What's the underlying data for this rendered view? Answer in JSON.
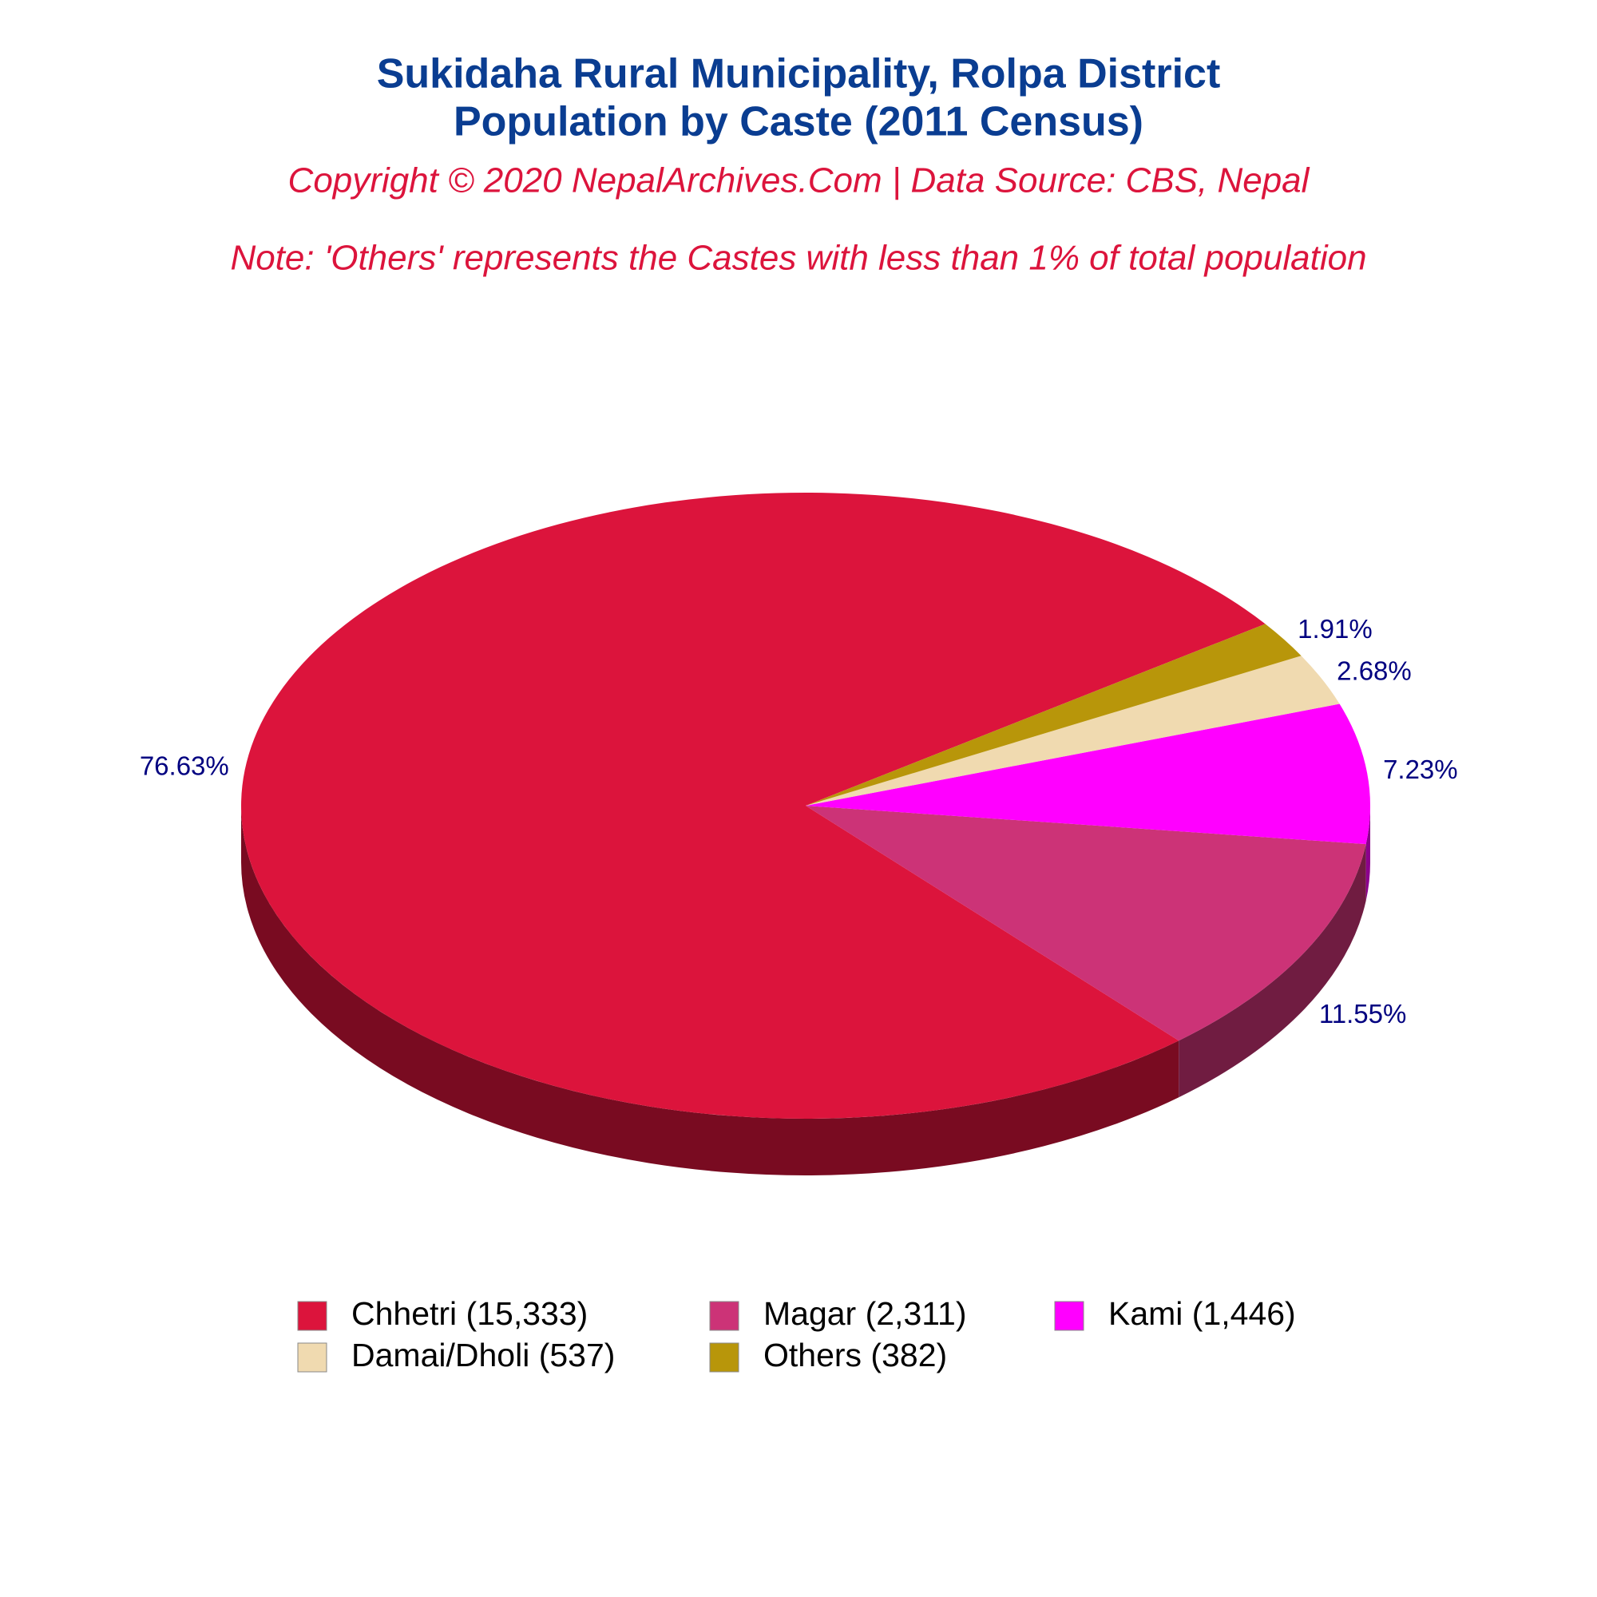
{
  "chart_data": {
    "type": "pie",
    "title": [
      "Sukidaha Rural Municipality, Rolpa District",
      "Population by Caste (2011 Census)"
    ],
    "subtitle": "Copyright © 2020 NepalArchives.Com | Data Source: CBS, Nepal",
    "note": "Note: 'Others' represents the Castes with less than 1% of total population",
    "categories": [
      "Chhetri (15,333)",
      "Magar (2,311)",
      "Kami (1,446)",
      "Damai/Dholi (537)",
      "Others (382)"
    ],
    "values": [
      76.63,
      11.55,
      7.23,
      2.68,
      1.91
    ],
    "value_labels": [
      "76.63%",
      "11.55%",
      "7.23%",
      "2.68%",
      "1.91%"
    ],
    "colors": [
      "#dc143c",
      "#cc3377",
      "#ff00ff",
      "#f0dab0",
      "#b8960a"
    ],
    "legend": "bottom"
  }
}
